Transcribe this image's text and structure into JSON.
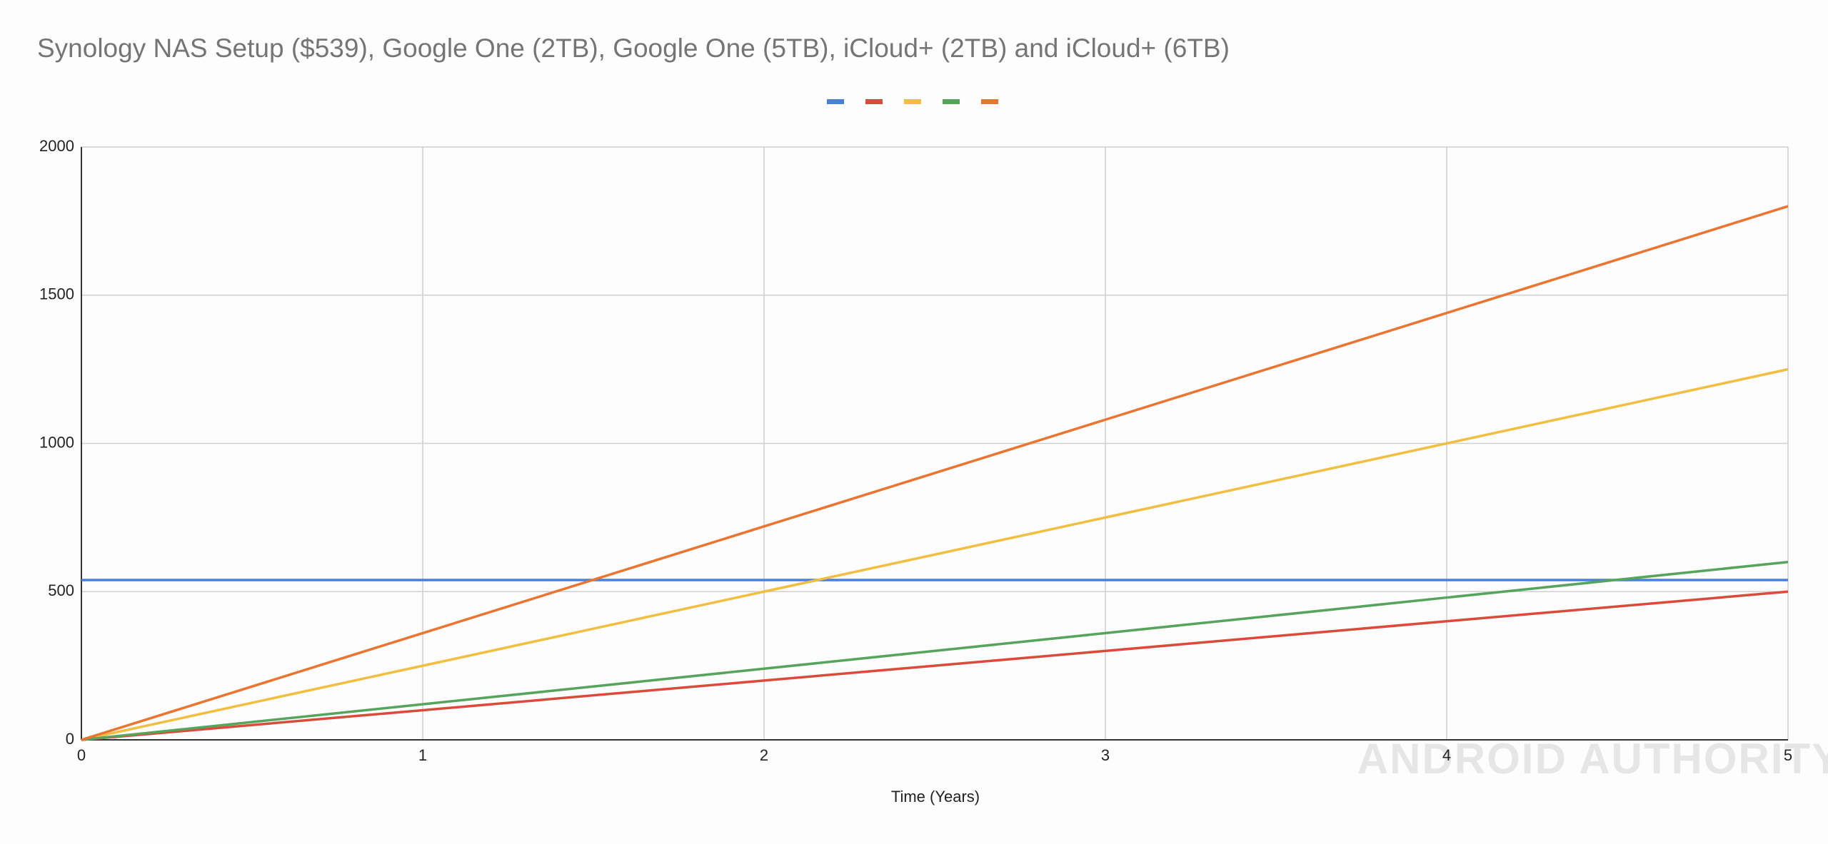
{
  "chart_data": {
    "type": "line",
    "title": "Synology NAS Setup ($539), Google One (2TB), Google One (5TB), iCloud+ (2TB) and iCloud+ (6TB)",
    "x_label": "Time (Years)",
    "watermark": "ANDROID AUTHORITY",
    "x": [
      0,
      1,
      2,
      3,
      4,
      5
    ],
    "series": [
      {
        "color": "#4a7fdd",
        "values": [
          539,
          539,
          539,
          539,
          539,
          539
        ]
      },
      {
        "color": "#db4b3c",
        "values": [
          0,
          100,
          200,
          300,
          400,
          500
        ]
      },
      {
        "color": "#f1be42",
        "values": [
          0,
          250,
          500,
          750,
          1000,
          1250
        ]
      },
      {
        "color": "#57a45c",
        "values": [
          0,
          120,
          240,
          360,
          480,
          600
        ]
      },
      {
        "color": "#eb7530",
        "values": [
          0,
          360,
          720,
          1080,
          1440,
          1800
        ]
      }
    ],
    "xlim": [
      0,
      5
    ],
    "xticks": [
      0,
      1,
      2,
      3,
      4,
      5
    ],
    "ylim": [
      0,
      2000
    ],
    "yticks": [
      0,
      500,
      1000,
      1500,
      2000
    ],
    "grid": true
  }
}
